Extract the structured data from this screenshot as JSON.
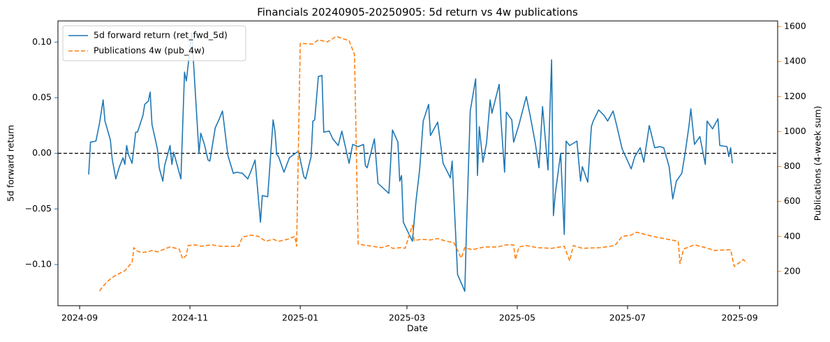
{
  "chart_data": {
    "type": "line",
    "title": "Financials 20240905-20250905: 5d return vs 4w publications",
    "xlabel": "Date",
    "ylabel": "5d forward return",
    "y2label": "Publications (4-week sum)",
    "xlim": [
      "2024-08-20",
      "2025-09-22"
    ],
    "xticks": [
      {
        "value": "2024-09-01",
        "label": "2024-09"
      },
      {
        "value": "2024-11-01",
        "label": "2024-11"
      },
      {
        "value": "2025-01-01",
        "label": "2025-01"
      },
      {
        "value": "2025-03-01",
        "label": "2025-03"
      },
      {
        "value": "2025-05-01",
        "label": "2025-05"
      },
      {
        "value": "2025-07-01",
        "label": "2025-07"
      },
      {
        "value": "2025-09-01",
        "label": "2025-09"
      }
    ],
    "ylim": [
      -0.137,
      0.119
    ],
    "yticks": [
      {
        "value": -0.1,
        "label": "−0.10"
      },
      {
        "value": -0.05,
        "label": "−0.05"
      },
      {
        "value": 0,
        "label": "0.00"
      },
      {
        "value": 0.05,
        "label": "0.05"
      },
      {
        "value": 0.1,
        "label": "0.10"
      }
    ],
    "y2lim": [
      4,
      1632
    ],
    "y2ticks": [
      200,
      400,
      600,
      800,
      1000,
      1200,
      1400,
      1600
    ],
    "hline": 0,
    "legend": "upper left",
    "ycolor": "#1f77b4",
    "y2color": "#ff7f0e",
    "series": [
      {
        "name": "5d forward return (ret_fwd_5d)",
        "color": "#1f77b4",
        "axis": "y",
        "dash": false,
        "x": [
          "2024-09-06",
          "2024-09-07",
          "2024-09-10",
          "2024-09-12",
          "2024-09-14",
          "2024-09-15",
          "2024-09-18",
          "2024-09-19",
          "2024-09-21",
          "2024-09-23",
          "2024-09-25",
          "2024-09-26",
          "2024-09-27",
          "2024-09-28",
          "2024-09-30",
          "2024-10-02",
          "2024-10-03",
          "2024-10-06",
          "2024-10-07",
          "2024-10-09",
          "2024-10-10",
          "2024-10-11",
          "2024-10-14",
          "2024-10-15",
          "2024-10-17",
          "2024-10-18",
          "2024-10-21",
          "2024-10-22",
          "2024-10-23",
          "2024-10-27",
          "2024-10-29",
          "2024-10-30",
          "2024-11-02",
          "2024-11-06",
          "2024-11-07",
          "2024-11-09",
          "2024-11-11",
          "2024-11-12",
          "2024-11-15",
          "2024-11-17",
          "2024-11-19",
          "2024-11-22",
          "2024-11-25",
          "2024-11-27",
          "2024-11-30",
          "2024-12-03",
          "2024-12-05",
          "2024-12-07",
          "2024-12-10",
          "2024-12-11",
          "2024-12-14",
          "2024-12-17",
          "2024-12-18",
          "2024-12-19",
          "2024-12-20",
          "2024-12-23",
          "2024-12-26",
          "2024-12-31",
          "2025-01-03",
          "2025-01-04",
          "2025-01-07",
          "2025-01-08",
          "2025-01-09",
          "2025-01-11",
          "2025-01-13",
          "2025-01-14",
          "2025-01-17",
          "2025-01-19",
          "2025-01-22",
          "2025-01-24",
          "2025-01-28",
          "2025-01-30",
          "2025-02-02",
          "2025-02-05",
          "2025-02-06",
          "2025-02-07",
          "2025-02-11",
          "2025-02-13",
          "2025-02-19",
          "2025-02-21",
          "2025-02-24",
          "2025-02-25",
          "2025-02-26",
          "2025-02-27",
          "2025-03-04",
          "2025-03-06",
          "2025-03-08",
          "2025-03-10",
          "2025-03-13",
          "2025-03-14",
          "2025-03-18",
          "2025-03-21",
          "2025-03-25",
          "2025-03-26",
          "2025-03-29",
          "2025-04-02",
          "2025-04-03",
          "2025-04-05",
          "2025-04-08",
          "2025-04-09",
          "2025-04-10",
          "2025-04-12",
          "2025-04-14",
          "2025-04-16",
          "2025-04-17",
          "2025-04-21",
          "2025-04-22",
          "2025-04-24",
          "2025-04-25",
          "2025-04-28",
          "2025-04-29",
          "2025-05-02",
          "2025-05-06",
          "2025-05-08",
          "2025-05-11",
          "2025-05-13",
          "2025-05-15",
          "2025-05-18",
          "2025-05-20",
          "2025-05-21",
          "2025-05-22",
          "2025-05-25",
          "2025-05-27",
          "2025-05-28",
          "2025-05-30",
          "2025-06-03",
          "2025-06-05",
          "2025-06-06",
          "2025-06-09",
          "2025-06-11",
          "2025-06-12",
          "2025-06-15",
          "2025-06-18",
          "2025-06-20",
          "2025-06-23",
          "2025-06-25",
          "2025-06-28",
          "2025-07-03",
          "2025-07-05",
          "2025-07-08",
          "2025-07-10",
          "2025-07-13",
          "2025-07-16",
          "2025-07-19",
          "2025-07-21",
          "2025-07-24",
          "2025-07-26",
          "2025-07-28",
          "2025-07-31",
          "2025-08-02",
          "2025-08-04",
          "2025-08-05",
          "2025-08-07",
          "2025-08-10",
          "2025-08-13",
          "2025-08-14",
          "2025-08-17",
          "2025-08-20",
          "2025-08-21",
          "2025-08-25",
          "2025-08-26",
          "2025-08-27",
          "2025-08-28"
        ],
        "values": [
          -0.019,
          0.01,
          0.011,
          0.027,
          0.048,
          0.029,
          0.012,
          -0.005,
          -0.023,
          -0.012,
          -0.004,
          -0.01,
          0.007,
          -0.001,
          -0.009,
          0.019,
          0.019,
          0.034,
          0.044,
          0.047,
          0.055,
          0.026,
          0.004,
          -0.013,
          -0.025,
          -0.011,
          0.007,
          -0.01,
          0.001,
          -0.023,
          0.073,
          0.065,
          0.108,
          0.0,
          0.018,
          0.008,
          -0.006,
          -0.007,
          0.023,
          0.03,
          0.038,
          -0.002,
          -0.018,
          -0.017,
          -0.018,
          -0.023,
          -0.015,
          -0.006,
          -0.062,
          -0.038,
          -0.039,
          0.03,
          0.02,
          -0.001,
          -0.003,
          -0.017,
          -0.004,
          0.002,
          -0.021,
          -0.023,
          -0.003,
          0.029,
          0.03,
          0.069,
          0.07,
          0.019,
          0.02,
          0.013,
          0.007,
          0.02,
          -0.009,
          0.008,
          0.006,
          0.008,
          -0.011,
          -0.013,
          0.013,
          -0.027,
          -0.036,
          0.021,
          0.01,
          -0.025,
          -0.02,
          -0.062,
          -0.079,
          -0.043,
          -0.015,
          0.029,
          0.044,
          0.016,
          0.028,
          -0.009,
          -0.022,
          -0.007,
          -0.109,
          -0.124,
          -0.064,
          0.038,
          0.067,
          -0.02,
          0.024,
          -0.008,
          0.009,
          0.048,
          0.036,
          0.062,
          0.03,
          -0.017,
          0.037,
          0.03,
          0.01,
          0.026,
          0.051,
          0.035,
          0.009,
          -0.013,
          0.042,
          -0.015,
          0.084,
          -0.056,
          -0.037,
          0.0,
          -0.073,
          0.011,
          0.007,
          0.011,
          -0.025,
          -0.012,
          -0.026,
          0.024,
          0.029,
          0.039,
          0.034,
          0.029,
          0.038,
          0.025,
          0.004,
          -0.014,
          -0.003,
          0.005,
          -0.008,
          0.025,
          0.005,
          0.006,
          0.005,
          -0.012,
          -0.041,
          -0.025,
          -0.018,
          0.002,
          0.025,
          0.04,
          0.008,
          0.015,
          -0.01,
          0.029,
          0.022,
          0.031,
          0.007,
          0.006,
          -0.003,
          0.005,
          -0.009
        ]
      },
      {
        "name": "Publications 4w (pub_4w)",
        "color": "#ff7f0e",
        "axis": "y2",
        "dash": true,
        "x": [
          "2024-09-12",
          "2024-09-14",
          "2024-09-17",
          "2024-09-20",
          "2024-09-26",
          "2024-09-30",
          "2024-10-01",
          "2024-10-03",
          "2024-10-05",
          "2024-10-09",
          "2024-10-11",
          "2024-10-14",
          "2024-10-18",
          "2024-10-21",
          "2024-10-26",
          "2024-10-28",
          "2024-10-30",
          "2024-10-31",
          "2024-11-04",
          "2024-11-07",
          "2024-11-13",
          "2024-11-18",
          "2024-11-28",
          "2024-11-30",
          "2024-12-05",
          "2024-12-09",
          "2024-12-13",
          "2024-12-17",
          "2024-12-20",
          "2024-12-25",
          "2024-12-29",
          "2024-12-30",
          "2025-01-01",
          "2025-01-08",
          "2025-01-11",
          "2025-01-16",
          "2025-01-21",
          "2025-01-24",
          "2025-01-28",
          "2025-01-31",
          "2025-02-02",
          "2025-02-07",
          "2025-02-15",
          "2025-02-19",
          "2025-02-21",
          "2025-02-26",
          "2025-02-28",
          "2025-03-04",
          "2025-03-05",
          "2025-03-09",
          "2025-03-14",
          "2025-03-18",
          "2025-03-23",
          "2025-03-27",
          "2025-03-31",
          "2025-04-02",
          "2025-04-06",
          "2025-04-13",
          "2025-04-20",
          "2025-04-25",
          "2025-04-29",
          "2025-04-30",
          "2025-05-02",
          "2025-05-06",
          "2025-05-12",
          "2025-05-20",
          "2025-05-27",
          "2025-05-30",
          "2025-06-01",
          "2025-06-06",
          "2025-06-16",
          "2025-06-24",
          "2025-06-28",
          "2025-07-03",
          "2025-07-06",
          "2025-07-15",
          "2025-07-21",
          "2025-07-29",
          "2025-07-30",
          "2025-08-01",
          "2025-08-07",
          "2025-08-13",
          "2025-08-18",
          "2025-08-27",
          "2025-08-29",
          "2025-09-03",
          "2025-09-05"
        ],
        "values": [
          88,
          116,
          148,
          172,
          204,
          252,
          336,
          316,
          308,
          312,
          320,
          312,
          328,
          340,
          328,
          272,
          292,
          348,
          352,
          344,
          352,
          344,
          344,
          396,
          408,
          400,
          372,
          384,
          372,
          384,
          400,
          344,
          1504,
          1500,
          1524,
          1512,
          1544,
          1532,
          1520,
          1440,
          356,
          348,
          336,
          348,
          332,
          336,
          332,
          464,
          376,
          384,
          380,
          388,
          372,
          364,
          276,
          336,
          324,
          340,
          340,
          352,
          352,
          268,
          340,
          348,
          336,
          332,
          344,
          260,
          348,
          332,
          336,
          348,
          400,
          408,
          424,
          400,
          388,
          372,
          244,
          328,
          352,
          336,
          320,
          324,
          228,
          268,
          248
        ]
      }
    ]
  }
}
